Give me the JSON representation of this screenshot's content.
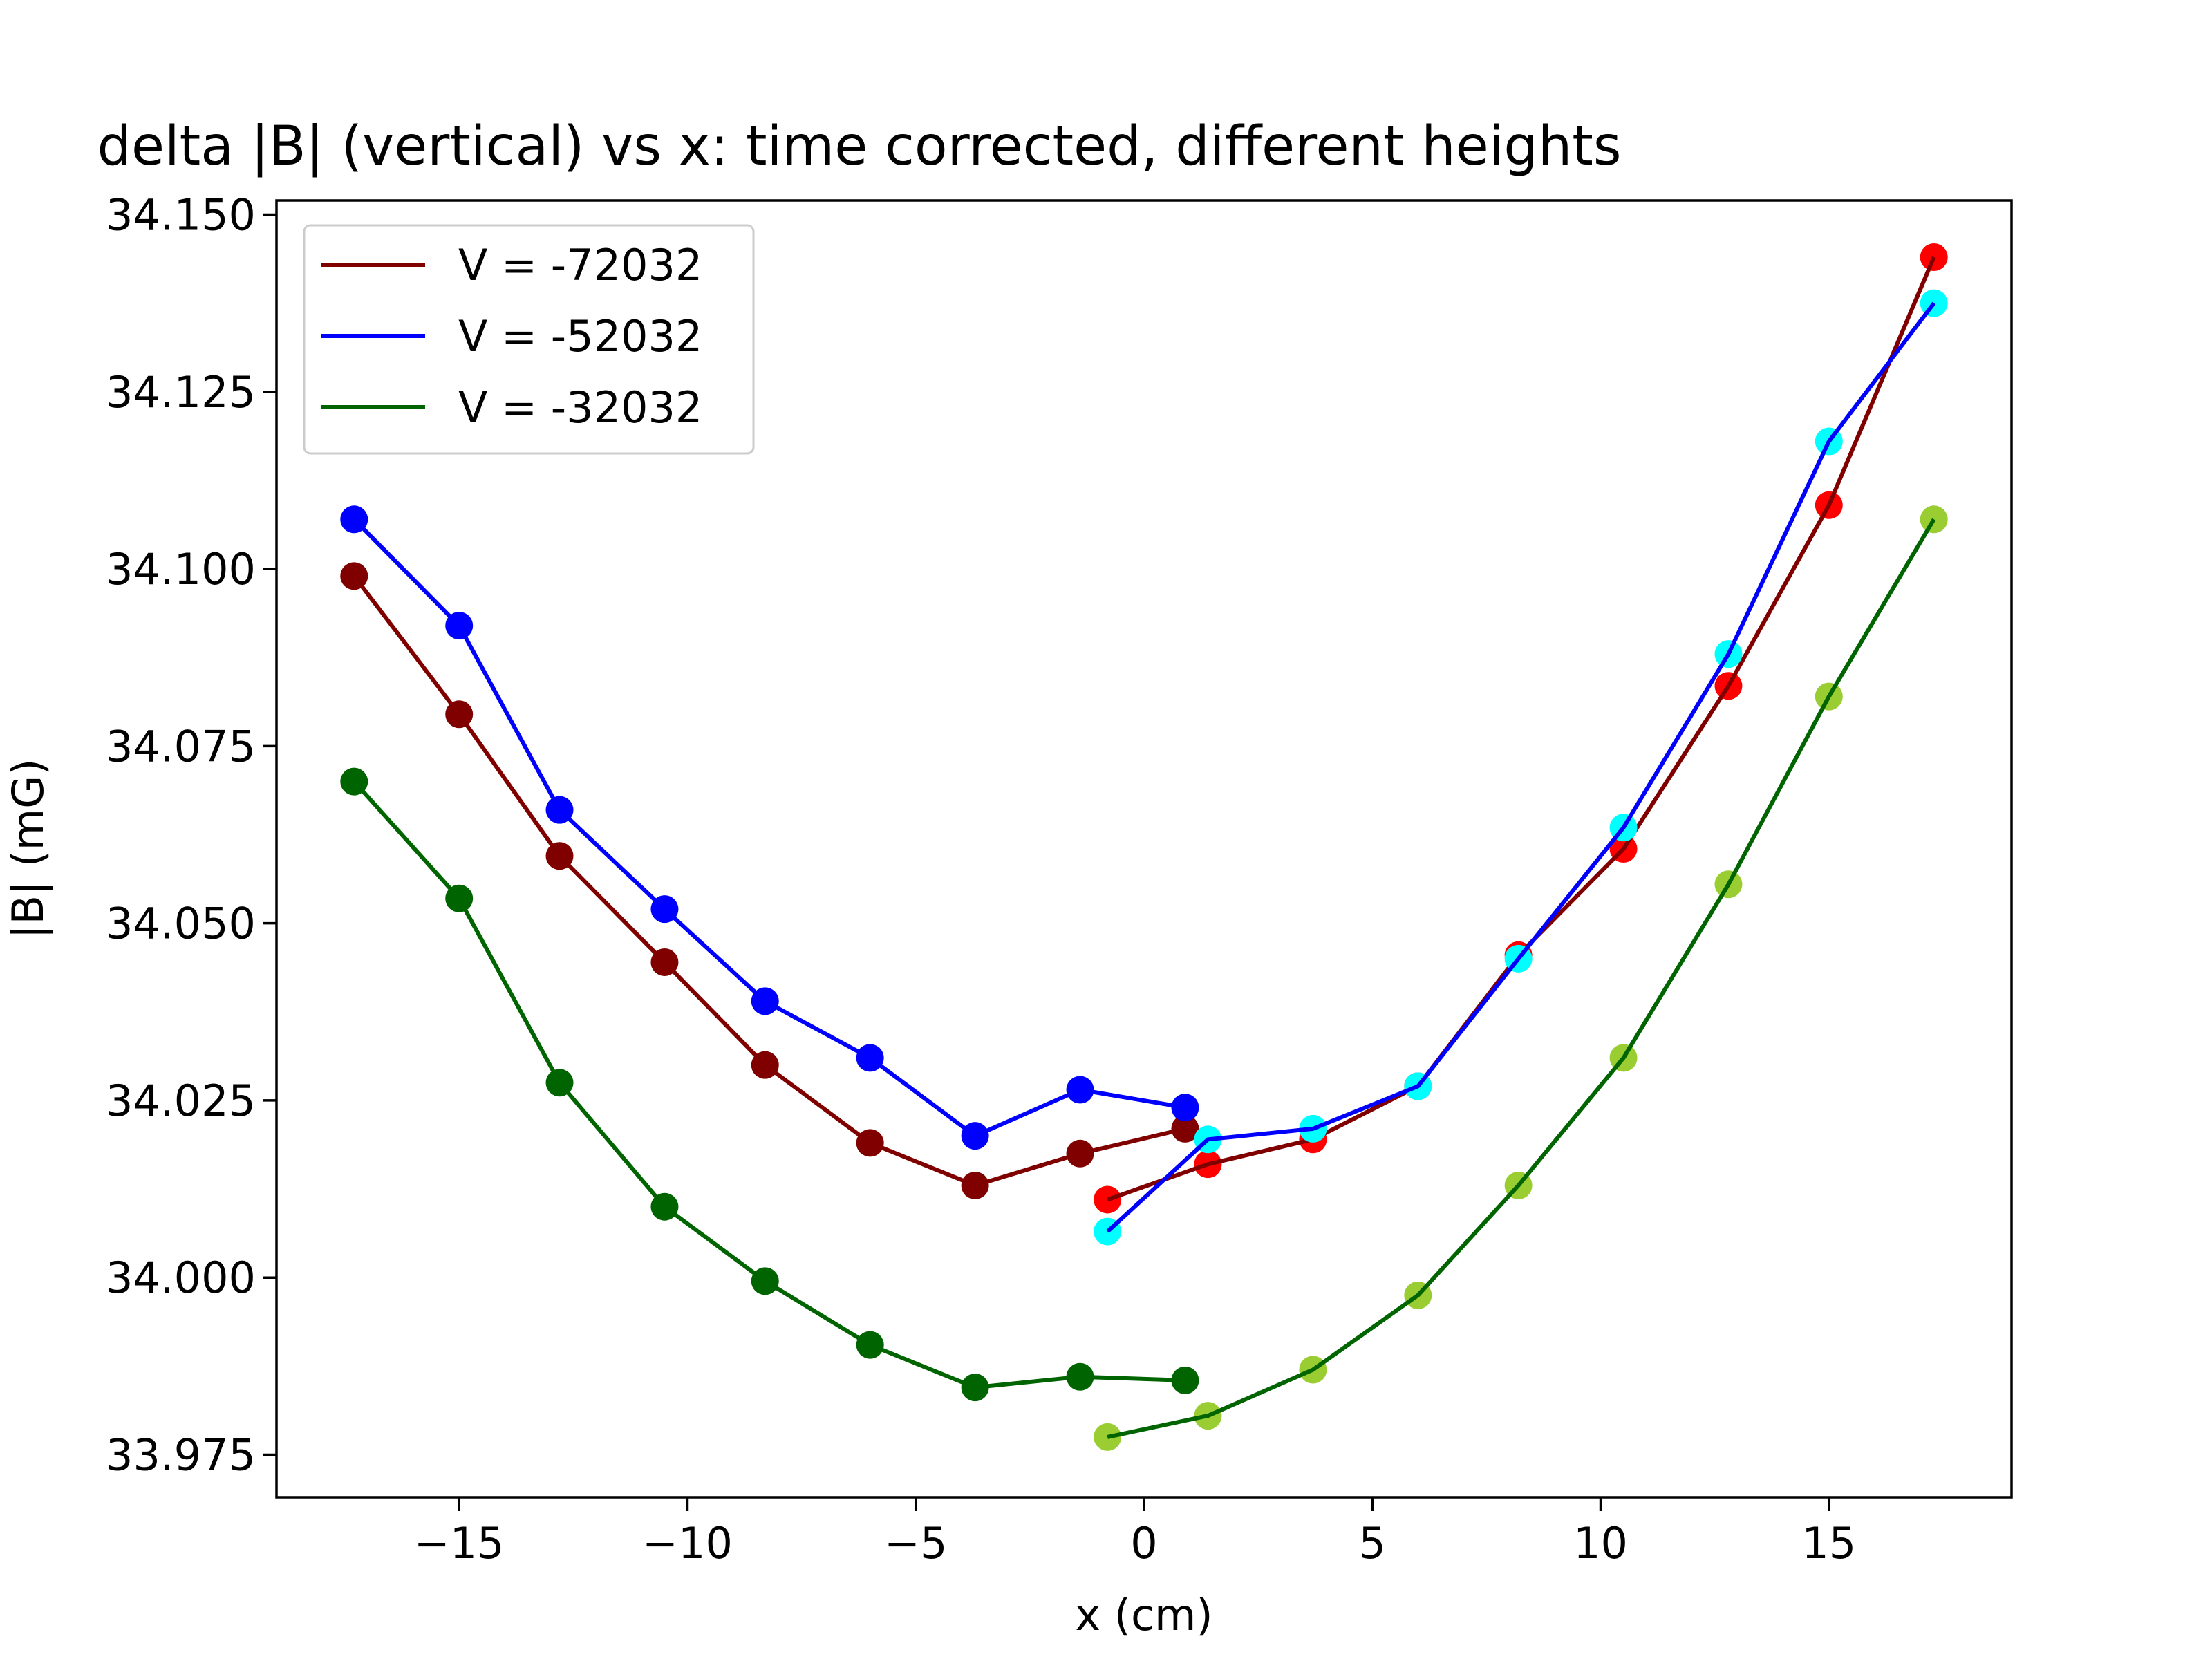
{
  "chart_data": {
    "type": "line",
    "title": "delta |B| (vertical) vs x: time corrected, different heights",
    "xlabel": "x (cm)",
    "ylabel": "|B| (mG)",
    "xlim": [
      -19.0,
      19.0
    ],
    "ylim": [
      33.969,
      34.152
    ],
    "xticks": [
      -15,
      -10,
      -5,
      0,
      5,
      10,
      15
    ],
    "xtick_labels": [
      "−15",
      "−10",
      "−5",
      "0",
      "5",
      "10",
      "15"
    ],
    "yticks": [
      33.975,
      34.0,
      34.025,
      34.05,
      34.075,
      34.1,
      34.125,
      34.15
    ],
    "ytick_labels": [
      "33.975",
      "34.000",
      "34.025",
      "34.050",
      "34.075",
      "34.100",
      "34.125",
      "34.150"
    ],
    "grid": false,
    "legend_position": "top-left",
    "series": [
      {
        "name": "V = -72032",
        "color": "#800000",
        "segments": [
          {
            "marker_color": "#800000",
            "x": [
              -17.3,
              -15.0,
              -12.8,
              -10.5,
              -8.3,
              -6.0,
              -3.7,
              -1.4,
              0.9
            ],
            "y": [
              34.099,
              34.0795,
              34.0595,
              34.0445,
              34.03,
              34.019,
              34.013,
              34.0175,
              34.021
            ]
          },
          {
            "marker_color": "#ff0000",
            "x": [
              -0.8,
              1.4,
              3.7,
              6.0,
              8.2,
              10.5,
              12.8,
              15.0,
              17.3
            ],
            "y": [
              34.011,
              34.016,
              34.0195,
              34.027,
              34.0455,
              34.0605,
              34.0835,
              34.109,
              34.144
            ]
          }
        ]
      },
      {
        "name": "V = -52032",
        "color": "#0000ff",
        "segments": [
          {
            "marker_color": "#0000ff",
            "x": [
              -17.3,
              -15.0,
              -12.8,
              -10.5,
              -8.3,
              -6.0,
              -3.7,
              -1.4,
              0.9
            ],
            "y": [
              34.107,
              34.092,
              34.066,
              34.052,
              34.039,
              34.031,
              34.02,
              34.0265,
              34.024
            ]
          },
          {
            "marker_color": "#00ffff",
            "x": [
              -0.8,
              1.4,
              3.7,
              6.0,
              8.2,
              10.5,
              12.8,
              15.0,
              17.3
            ],
            "y": [
              34.0065,
              34.0195,
              34.021,
              34.027,
              34.045,
              34.0635,
              34.088,
              34.118,
              34.1375
            ]
          }
        ]
      },
      {
        "name": "V = -32032",
        "color": "#006400",
        "segments": [
          {
            "marker_color": "#006400",
            "x": [
              -17.3,
              -15.0,
              -12.8,
              -10.5,
              -8.3,
              -6.0,
              -3.7,
              -1.4,
              0.9
            ],
            "y": [
              34.07,
              34.0535,
              34.0275,
              34.01,
              33.9995,
              33.9905,
              33.9845,
              33.986,
              33.9855
            ]
          },
          {
            "marker_color": "#9acd32",
            "x": [
              -0.8,
              1.4,
              3.7,
              6.0,
              8.2,
              10.5,
              12.8,
              15.0,
              17.3
            ],
            "y": [
              33.9775,
              33.9805,
              33.987,
              33.9975,
              34.013,
              34.031,
              34.0555,
              34.082,
              34.107
            ]
          }
        ]
      }
    ]
  }
}
